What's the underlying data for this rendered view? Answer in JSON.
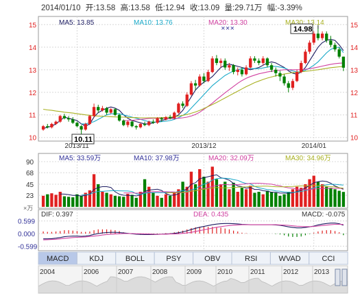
{
  "header": {
    "date": "2014/01/10",
    "open_label": "开:",
    "open": "13.58",
    "high_label": "高:",
    "high": "13.58",
    "low_label": "低:",
    "low": "12.94",
    "close_label": "收:",
    "close": "13.09",
    "volume_label": "量:",
    "volume": "29.71万",
    "change_label": "幅:",
    "change": "-3.39%"
  },
  "price_legend": {
    "ma5": "MA5: 13.85",
    "ma10": "MA10: 13.76",
    "ma20": "MA20: 13.30",
    "ma30": "MA30: 13.14"
  },
  "volume_legend": {
    "ma5": "MA5: 33.59万",
    "ma10": "MA10: 37.98万",
    "ma20": "MA20: 32.09万",
    "ma30": "MA30: 34.96万"
  },
  "macd_legend": {
    "dif": "DIF: 0.397",
    "dea": "DEA: 0.435",
    "macd": "MACD: -0.075",
    "unit": "×万"
  },
  "annotations": {
    "high_marker": "14.98",
    "low_marker": "10.11"
  },
  "tabs": [
    "MACD",
    "KDJ",
    "BOLL",
    "PSY",
    "OBV",
    "RSI",
    "WVAD",
    "CCI"
  ],
  "active_tab": "MACD",
  "timeline_years": [
    "2004",
    "2006",
    "2007",
    "2008",
    "2009",
    "2010",
    "2011",
    "2012",
    "2013"
  ],
  "colors": {
    "up": "#e02020",
    "down": "#008000",
    "ma5": "#1a1a60",
    "ma10": "#18a8c8",
    "ma20": "#d040a0",
    "ma30": "#a8b020",
    "grid": "#d8d8d8",
    "axis": "#333333",
    "legend_blue": "#333399"
  },
  "chart_data": [
    {
      "type": "candlestick",
      "title": "",
      "x_ticks": [
        "2013/11",
        "2013/12",
        "2014/01"
      ],
      "y_ticks": [
        10,
        11,
        12,
        13,
        14,
        15
      ],
      "ylim": [
        9.9,
        15.3
      ],
      "grid": true,
      "series": [
        {
          "name": "MA5",
          "values": [
            10.4,
            10.45,
            10.5,
            10.6,
            10.75,
            10.9,
            10.85,
            10.8,
            10.75,
            10.6,
            10.5,
            10.6,
            10.9,
            11.1,
            11.2,
            11.3,
            11.35,
            11.3,
            11.2,
            11.0,
            10.85,
            10.75,
            10.7,
            10.65,
            10.6,
            10.6,
            10.65,
            10.7,
            10.75,
            10.8,
            10.85,
            10.9,
            11.0,
            11.2,
            11.5,
            11.8,
            12.1,
            12.3,
            12.45,
            12.55,
            12.7,
            12.9,
            13.1,
            13.2,
            13.25,
            13.2,
            13.15,
            13.1,
            13.05,
            13.0,
            13.05,
            13.1,
            13.2,
            13.3,
            13.35,
            13.3,
            13.2,
            13.1,
            12.95,
            12.85,
            12.8,
            12.9,
            13.1,
            13.4,
            13.7,
            14.0,
            14.2,
            14.3,
            14.35,
            14.3,
            14.1,
            13.85
          ]
        },
        {
          "name": "MA10",
          "values": [
            null,
            null,
            null,
            null,
            null,
            null,
            null,
            null,
            null,
            10.6,
            10.6,
            10.65,
            10.7,
            10.8,
            10.9,
            11.0,
            11.05,
            11.05,
            11.05,
            11.0,
            10.95,
            10.9,
            10.85,
            10.8,
            10.75,
            10.7,
            10.68,
            10.68,
            10.7,
            10.72,
            10.75,
            10.8,
            10.88,
            10.98,
            11.1,
            11.3,
            11.5,
            11.7,
            11.9,
            12.1,
            12.3,
            12.45,
            12.6,
            12.75,
            12.85,
            12.95,
            13.0,
            13.05,
            13.05,
            13.05,
            13.05,
            13.05,
            13.08,
            13.12,
            13.15,
            13.15,
            13.12,
            13.08,
            13.0,
            12.95,
            12.9,
            12.92,
            12.98,
            13.08,
            13.2,
            13.35,
            13.55,
            13.75,
            13.9,
            13.98,
            14.0,
            13.76
          ]
        },
        {
          "name": "MA20",
          "values": [
            null,
            null,
            null,
            null,
            null,
            null,
            null,
            null,
            null,
            null,
            null,
            null,
            null,
            null,
            null,
            null,
            null,
            null,
            null,
            10.75,
            10.75,
            10.76,
            10.78,
            10.8,
            10.82,
            10.84,
            10.85,
            10.85,
            10.85,
            10.84,
            10.84,
            10.84,
            10.85,
            10.87,
            10.9,
            10.95,
            11.02,
            11.12,
            11.25,
            11.38,
            11.52,
            11.68,
            11.83,
            11.98,
            12.12,
            12.26,
            12.4,
            12.52,
            12.62,
            12.7,
            12.76,
            12.82,
            12.86,
            12.9,
            12.93,
            12.96,
            12.98,
            13.0,
            13.0,
            13.0,
            13.0,
            13.0,
            13.02,
            13.05,
            13.08,
            13.12,
            13.16,
            13.2,
            13.24,
            13.27,
            13.29,
            13.3
          ]
        },
        {
          "name": "MA30",
          "values": [
            11.25,
            11.22,
            11.2,
            11.17,
            11.15,
            11.12,
            11.1,
            11.08,
            11.05,
            11.03,
            11.0,
            10.98,
            10.96,
            10.95,
            10.94,
            10.93,
            10.92,
            10.91,
            10.9,
            10.9,
            10.89,
            10.88,
            10.88,
            10.87,
            10.87,
            10.87,
            10.87,
            10.87,
            10.88,
            10.89,
            10.9,
            10.92,
            10.95,
            10.98,
            11.02,
            11.07,
            11.13,
            11.2,
            11.28,
            11.37,
            11.46,
            11.55,
            11.65,
            11.75,
            11.85,
            11.95,
            12.05,
            12.15,
            12.25,
            12.34,
            12.43,
            12.5,
            12.57,
            12.63,
            12.68,
            12.73,
            12.77,
            12.81,
            12.84,
            12.87,
            12.89,
            12.91,
            12.93,
            12.95,
            12.98,
            13.0,
            13.03,
            13.06,
            13.09,
            13.11,
            13.13,
            13.14
          ]
        }
      ],
      "candles": [
        [
          10.35,
          10.5,
          10.3,
          10.55
        ],
        [
          10.5,
          10.45,
          10.4,
          10.6
        ],
        [
          10.45,
          10.6,
          10.4,
          10.65
        ],
        [
          10.6,
          10.7,
          10.55,
          10.75
        ],
        [
          10.7,
          10.95,
          10.65,
          11.0
        ],
        [
          10.95,
          10.85,
          10.8,
          11.05
        ],
        [
          10.85,
          10.8,
          10.7,
          10.95
        ],
        [
          10.8,
          10.65,
          10.6,
          10.9
        ],
        [
          10.65,
          10.5,
          10.45,
          10.7
        ],
        [
          10.5,
          10.35,
          10.11,
          10.55
        ],
        [
          10.35,
          10.6,
          10.3,
          10.65
        ],
        [
          10.6,
          10.95,
          10.55,
          11.0
        ],
        [
          10.95,
          11.35,
          10.9,
          11.5
        ],
        [
          11.35,
          11.2,
          11.1,
          11.45
        ],
        [
          11.2,
          11.3,
          11.15,
          11.4
        ],
        [
          11.3,
          11.1,
          11.0,
          11.35
        ],
        [
          11.1,
          11.25,
          11.05,
          11.3
        ],
        [
          11.25,
          11.0,
          10.95,
          11.3
        ],
        [
          11.0,
          10.75,
          10.7,
          11.05
        ],
        [
          10.75,
          10.55,
          10.5,
          10.8
        ],
        [
          10.55,
          10.7,
          10.45,
          10.75
        ],
        [
          10.7,
          10.5,
          10.45,
          10.75
        ],
        [
          10.5,
          10.45,
          10.35,
          10.55
        ],
        [
          10.45,
          10.6,
          10.4,
          10.65
        ],
        [
          10.6,
          10.55,
          10.5,
          10.7
        ],
        [
          10.55,
          10.7,
          10.5,
          10.75
        ],
        [
          10.7,
          10.65,
          10.6,
          10.8
        ],
        [
          10.65,
          10.85,
          10.6,
          10.9
        ],
        [
          10.85,
          10.8,
          10.7,
          10.9
        ],
        [
          10.8,
          10.9,
          10.75,
          10.95
        ],
        [
          10.9,
          10.85,
          10.8,
          11.0
        ],
        [
          10.85,
          11.1,
          10.8,
          11.15
        ],
        [
          11.1,
          11.5,
          11.05,
          11.55
        ],
        [
          11.5,
          11.4,
          11.3,
          11.6
        ],
        [
          11.4,
          11.9,
          11.35,
          12.0
        ],
        [
          11.9,
          12.4,
          11.85,
          12.5
        ],
        [
          12.4,
          12.3,
          12.1,
          12.55
        ],
        [
          12.3,
          12.7,
          12.25,
          12.8
        ],
        [
          12.7,
          12.5,
          12.4,
          12.85
        ],
        [
          12.5,
          12.9,
          12.45,
          13.0
        ],
        [
          12.9,
          13.5,
          12.85,
          13.6
        ],
        [
          13.5,
          13.3,
          13.2,
          13.65
        ],
        [
          13.3,
          13.4,
          13.1,
          13.5
        ],
        [
          13.4,
          13.1,
          13.0,
          13.5
        ],
        [
          13.1,
          13.2,
          12.95,
          13.3
        ],
        [
          13.2,
          12.9,
          12.8,
          13.25
        ],
        [
          12.9,
          13.0,
          12.75,
          13.1
        ],
        [
          13.0,
          12.8,
          12.7,
          13.1
        ],
        [
          12.8,
          13.1,
          12.75,
          13.2
        ],
        [
          13.1,
          13.5,
          13.05,
          13.6
        ],
        [
          13.5,
          13.4,
          13.3,
          13.6
        ],
        [
          13.4,
          13.3,
          13.2,
          13.5
        ],
        [
          13.3,
          13.5,
          13.2,
          13.6
        ],
        [
          13.5,
          13.2,
          13.1,
          13.55
        ],
        [
          13.2,
          13.0,
          12.9,
          13.3
        ],
        [
          13.0,
          12.85,
          12.7,
          13.1
        ],
        [
          12.85,
          12.7,
          12.5,
          12.95
        ],
        [
          12.7,
          12.4,
          12.3,
          12.8
        ],
        [
          12.4,
          12.2,
          12.0,
          12.5
        ],
        [
          12.2,
          12.5,
          12.1,
          12.6
        ],
        [
          12.5,
          12.9,
          12.45,
          13.0
        ],
        [
          12.9,
          13.3,
          12.85,
          13.4
        ],
        [
          13.3,
          13.8,
          13.25,
          13.9
        ],
        [
          13.8,
          14.2,
          13.7,
          14.3
        ],
        [
          14.2,
          14.6,
          14.1,
          14.7
        ],
        [
          14.6,
          14.4,
          14.3,
          14.98
        ],
        [
          14.4,
          14.6,
          14.3,
          14.7
        ],
        [
          14.6,
          14.3,
          14.2,
          14.7
        ],
        [
          14.3,
          14.1,
          14.0,
          14.5
        ],
        [
          14.1,
          13.9,
          13.8,
          14.2
        ],
        [
          13.9,
          13.58,
          13.5,
          14.0
        ],
        [
          13.58,
          13.09,
          12.94,
          13.58
        ]
      ]
    },
    {
      "type": "bar",
      "title": "",
      "ylabel": "万",
      "y_ticks": [
        23,
        45,
        68,
        90
      ],
      "ylim": [
        0,
        90
      ],
      "values": [
        22,
        25,
        27,
        24,
        30,
        21,
        20,
        19,
        25,
        22,
        28,
        33,
        65,
        45,
        30,
        28,
        25,
        22,
        21,
        20,
        26,
        24,
        18,
        30,
        55,
        40,
        28,
        22,
        18,
        25,
        22,
        30,
        35,
        50,
        40,
        70,
        45,
        75,
        60,
        50,
        80,
        55,
        45,
        50,
        35,
        48,
        30,
        38,
        35,
        42,
        28,
        30,
        25,
        32,
        30,
        28,
        22,
        25,
        30,
        35,
        40,
        38,
        45,
        55,
        62,
        50,
        45,
        40,
        38,
        35,
        32,
        29.71
      ],
      "ma_values": {
        "MA5": 33.59,
        "MA10": 37.98,
        "MA20": 32.09,
        "MA30": 34.96
      }
    },
    {
      "type": "macd",
      "title": "",
      "y_ticks": [
        0.599,
        0.0,
        -0.599
      ],
      "ylim": [
        -0.75,
        0.75
      ],
      "dif": [
        -0.25,
        -0.25,
        -0.24,
        -0.22,
        -0.19,
        -0.15,
        -0.13,
        -0.12,
        -0.12,
        -0.13,
        -0.12,
        -0.09,
        -0.04,
        0.0,
        0.03,
        0.05,
        0.06,
        0.06,
        0.05,
        0.03,
        0.01,
        -0.01,
        -0.03,
        -0.04,
        -0.05,
        -0.05,
        -0.05,
        -0.04,
        -0.03,
        -0.02,
        -0.01,
        0.01,
        0.04,
        0.08,
        0.13,
        0.19,
        0.25,
        0.3,
        0.34,
        0.38,
        0.42,
        0.45,
        0.47,
        0.48,
        0.48,
        0.47,
        0.46,
        0.44,
        0.43,
        0.42,
        0.42,
        0.42,
        0.42,
        0.42,
        0.42,
        0.41,
        0.39,
        0.36,
        0.32,
        0.29,
        0.27,
        0.27,
        0.29,
        0.32,
        0.36,
        0.41,
        0.45,
        0.48,
        0.5,
        0.5,
        0.47,
        0.397
      ],
      "dea": [
        -0.3,
        -0.29,
        -0.28,
        -0.27,
        -0.25,
        -0.23,
        -0.21,
        -0.19,
        -0.18,
        -0.17,
        -0.16,
        -0.14,
        -0.12,
        -0.1,
        -0.07,
        -0.05,
        -0.03,
        -0.02,
        -0.01,
        0.0,
        0.0,
        0.0,
        -0.01,
        -0.01,
        -0.02,
        -0.02,
        -0.03,
        -0.03,
        -0.03,
        -0.03,
        -0.02,
        -0.02,
        -0.01,
        0.01,
        0.03,
        0.06,
        0.1,
        0.14,
        0.18,
        0.22,
        0.26,
        0.3,
        0.33,
        0.36,
        0.38,
        0.4,
        0.41,
        0.42,
        0.42,
        0.42,
        0.42,
        0.42,
        0.42,
        0.42,
        0.42,
        0.42,
        0.41,
        0.4,
        0.39,
        0.37,
        0.35,
        0.34,
        0.33,
        0.33,
        0.34,
        0.36,
        0.38,
        0.4,
        0.42,
        0.44,
        0.44,
        0.435
      ]
    }
  ]
}
